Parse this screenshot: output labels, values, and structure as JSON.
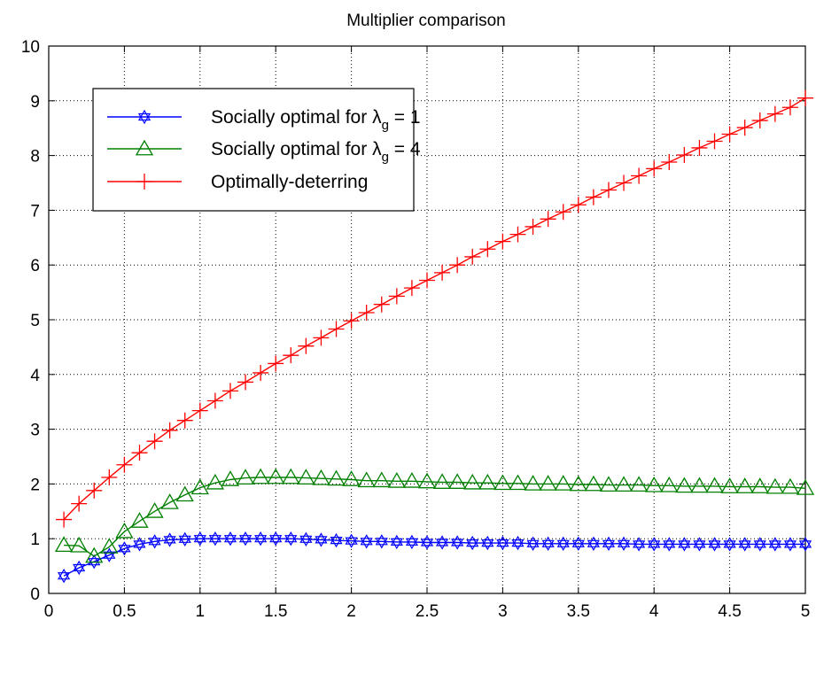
{
  "chart_data": {
    "type": "line",
    "title": "Multiplier comparison",
    "xlabel": "",
    "ylabel": "",
    "xlim": [
      0,
      5
    ],
    "ylim": [
      0,
      10
    ],
    "xticks": [
      "0",
      "0.5",
      "1",
      "1.5",
      "2",
      "2.5",
      "3",
      "3.5",
      "4",
      "4.5",
      "5"
    ],
    "yticks": [
      "0",
      "1",
      "2",
      "3",
      "4",
      "5",
      "6",
      "7",
      "8",
      "9",
      "10"
    ],
    "grid": true,
    "legend_position": "top-left",
    "x": [
      0.1,
      0.2,
      0.3,
      0.4,
      0.5,
      0.6,
      0.7,
      0.8,
      0.9,
      1.0,
      1.1,
      1.2,
      1.3,
      1.4,
      1.5,
      1.6,
      1.7,
      1.8,
      1.9,
      2.0,
      2.1,
      2.2,
      2.3,
      2.4,
      2.5,
      2.6,
      2.7,
      2.8,
      2.9,
      3.0,
      3.1,
      3.2,
      3.3,
      3.4,
      3.5,
      3.6,
      3.7,
      3.8,
      3.9,
      4.0,
      4.1,
      4.2,
      4.3,
      4.4,
      4.5,
      4.6,
      4.7,
      4.8,
      4.9,
      5.0
    ],
    "series": [
      {
        "name_main": "Socially optimal for ",
        "name_symbol": "λ",
        "name_sub": "g",
        "name_tail": " = 1",
        "color": "#0000ff",
        "marker": "hexagram",
        "values": [
          0.32,
          0.47,
          0.58,
          0.7,
          0.82,
          0.9,
          0.95,
          0.98,
          0.99,
          1.0,
          1.0,
          1.0,
          1.0,
          1.0,
          1.0,
          1.0,
          0.99,
          0.98,
          0.97,
          0.96,
          0.95,
          0.95,
          0.94,
          0.94,
          0.93,
          0.93,
          0.93,
          0.92,
          0.92,
          0.92,
          0.92,
          0.91,
          0.91,
          0.91,
          0.91,
          0.91,
          0.91,
          0.91,
          0.9,
          0.9,
          0.9,
          0.9,
          0.9,
          0.9,
          0.9,
          0.9,
          0.9,
          0.9,
          0.9,
          0.9
        ]
      },
      {
        "name_main": "Socially optimal for ",
        "name_symbol": "λ",
        "name_sub": "g",
        "name_tail": " = 4",
        "color": "#008000",
        "marker": "triangle",
        "values": [
          0.88,
          0.87,
          0.68,
          0.85,
          1.13,
          1.32,
          1.5,
          1.66,
          1.8,
          1.93,
          2.02,
          2.08,
          2.11,
          2.12,
          2.12,
          2.12,
          2.11,
          2.1,
          2.09,
          2.08,
          2.06,
          2.06,
          2.05,
          2.05,
          2.04,
          2.03,
          2.03,
          2.02,
          2.02,
          2.01,
          2.01,
          2.0,
          2.0,
          2.0,
          1.99,
          1.99,
          1.98,
          1.98,
          1.98,
          1.97,
          1.97,
          1.96,
          1.96,
          1.96,
          1.95,
          1.95,
          1.95,
          1.94,
          1.94,
          1.92
        ]
      },
      {
        "name_main": "Optimally-deterring",
        "name_symbol": "",
        "name_sub": "",
        "name_tail": "",
        "color": "#ff0000",
        "marker": "plus",
        "values": [
          1.35,
          1.64,
          1.88,
          2.12,
          2.35,
          2.57,
          2.78,
          2.98,
          3.16,
          3.34,
          3.52,
          3.7,
          3.86,
          4.03,
          4.2,
          4.35,
          4.52,
          4.67,
          4.83,
          4.98,
          5.13,
          5.28,
          5.43,
          5.58,
          5.72,
          5.86,
          6.0,
          6.15,
          6.29,
          6.43,
          6.56,
          6.7,
          6.84,
          6.97,
          7.1,
          7.24,
          7.37,
          7.5,
          7.63,
          7.76,
          7.88,
          8.01,
          8.14,
          8.26,
          8.39,
          8.51,
          8.64,
          8.76,
          8.88,
          9.05
        ]
      }
    ]
  }
}
